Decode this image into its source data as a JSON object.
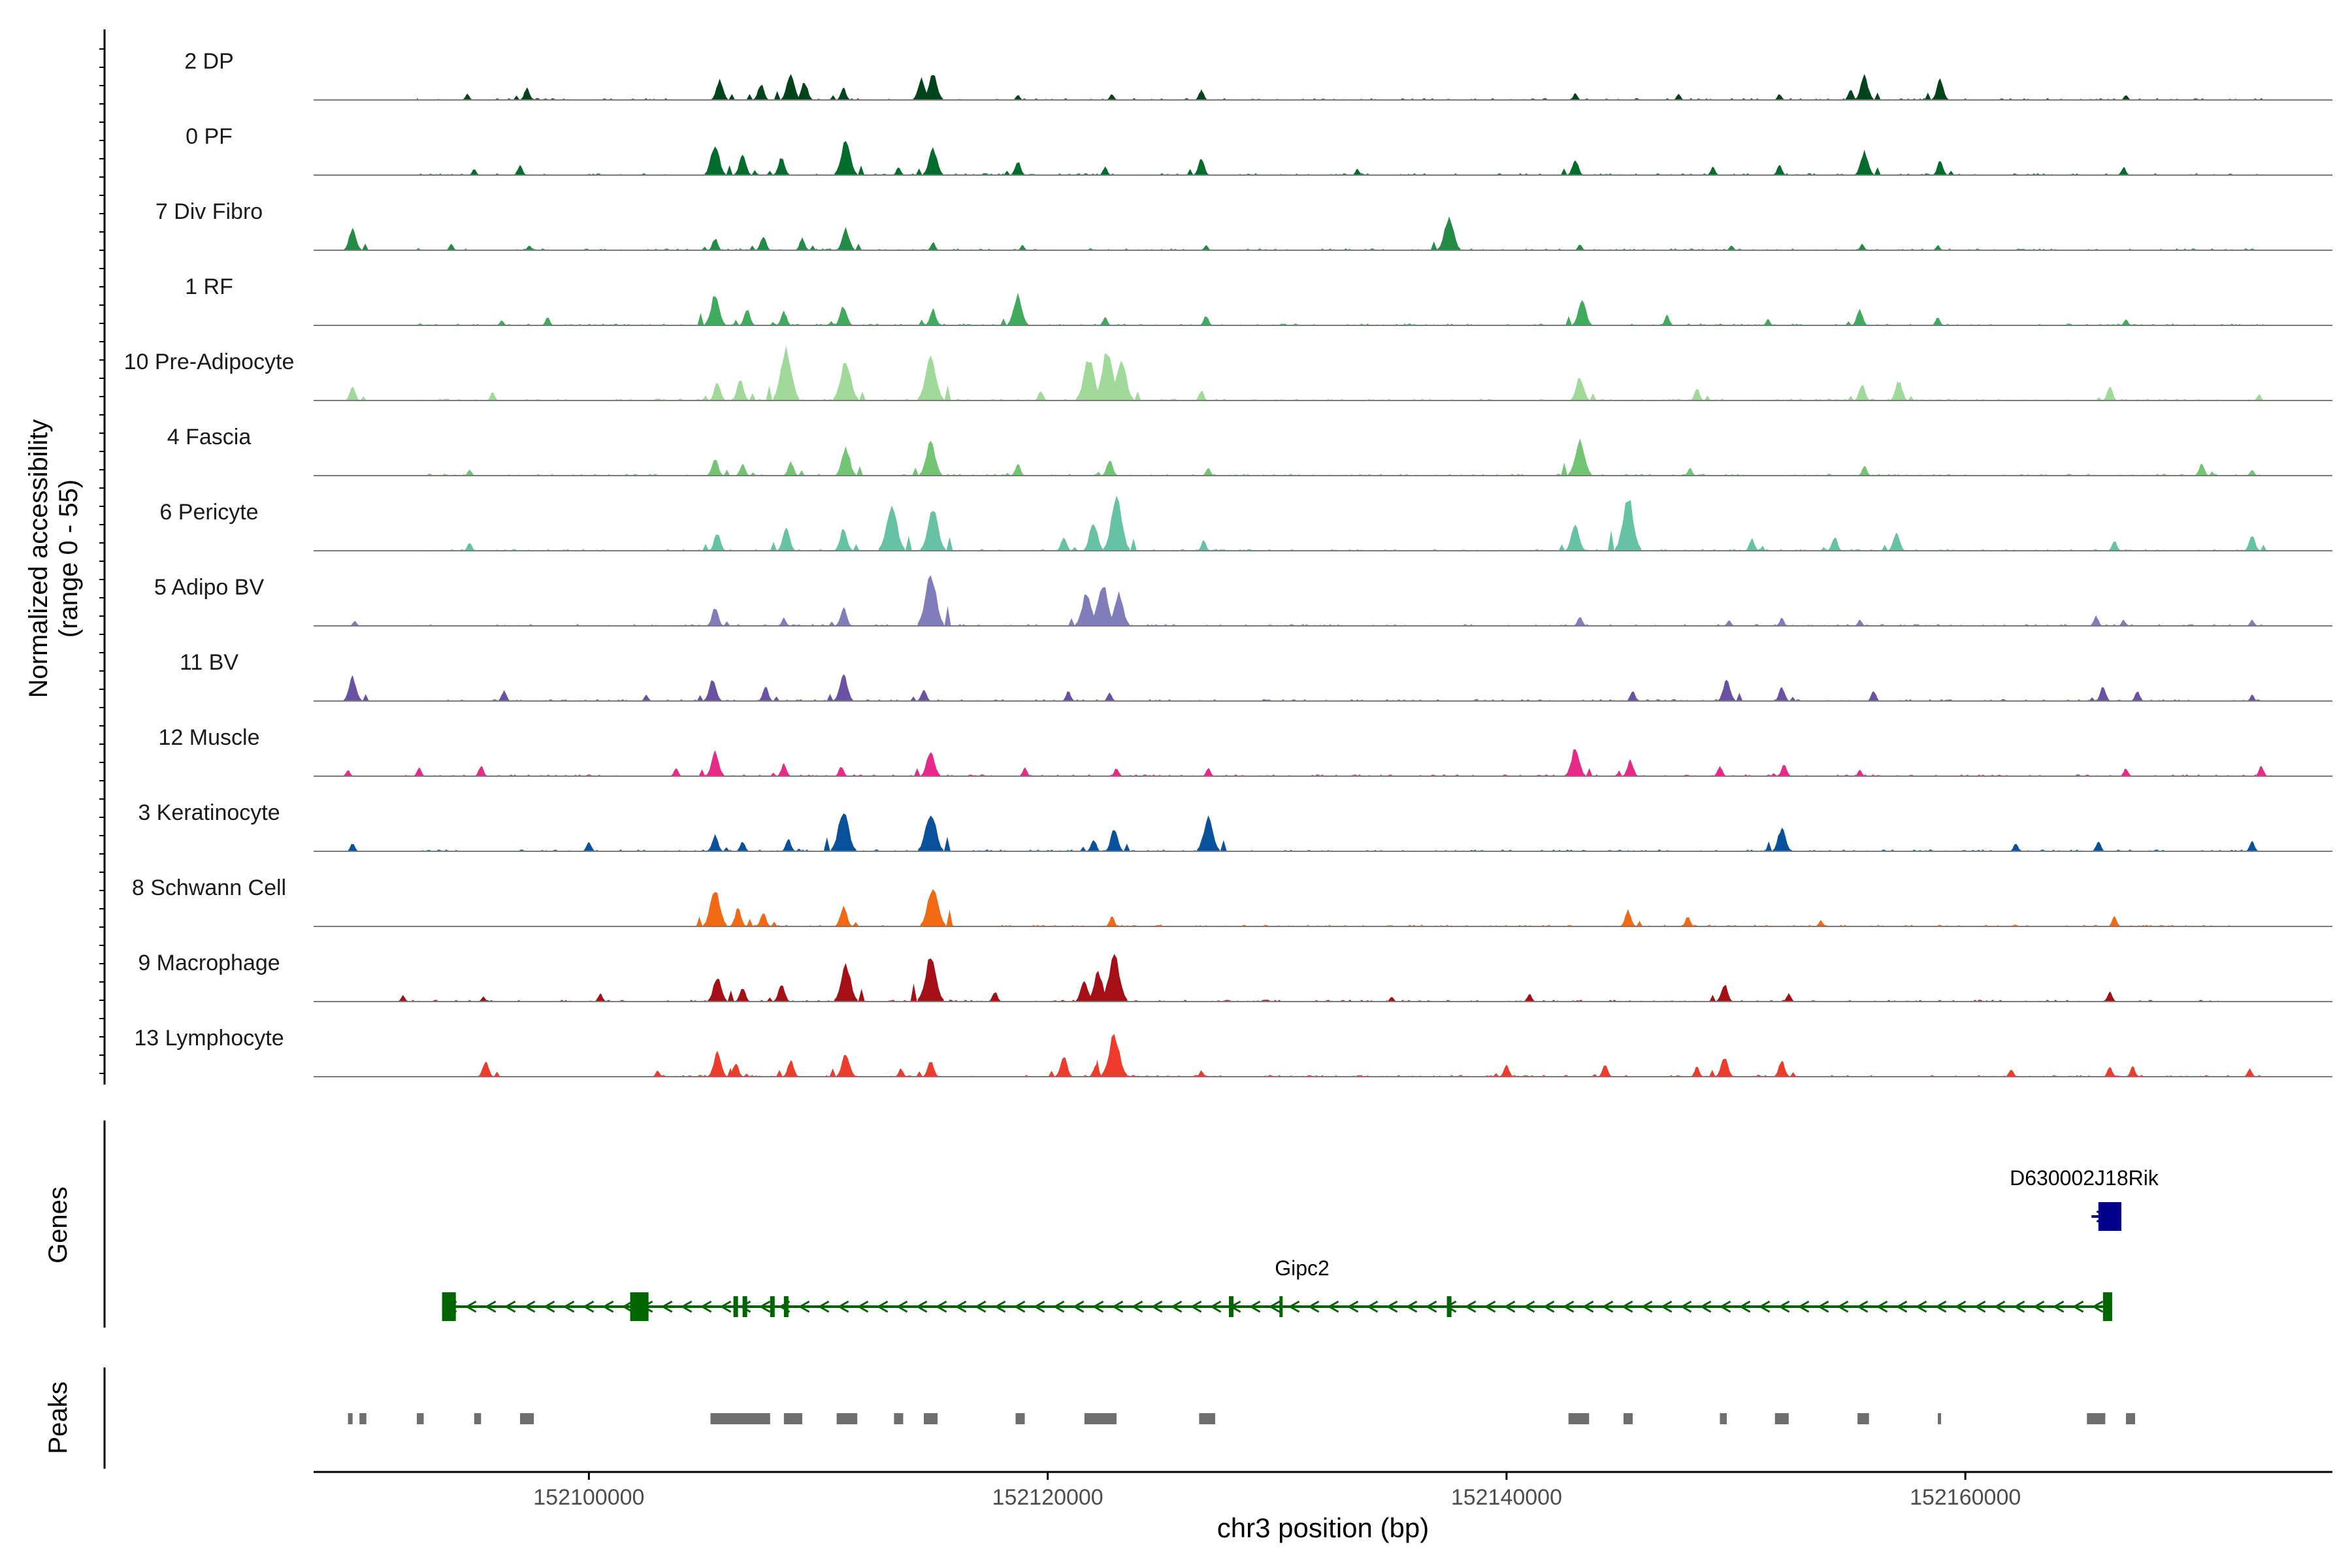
{
  "chart_data": {
    "type": "area",
    "title": "",
    "chromosome": "chr3",
    "xlabel": "chr3 position (bp)",
    "xlim": [
      152088000,
      152176000
    ],
    "xticks": [
      152100000,
      152120000,
      152140000,
      152160000
    ],
    "xtick_labels": [
      "152100000",
      "152120000",
      "152140000",
      "152160000"
    ],
    "ylabel_line1": "Normalized accessibility",
    "ylabel_line2": "(range 0 - 55)",
    "ylim": [
      0,
      55
    ],
    "tracks": [
      {
        "name": "2 DP",
        "color": "#00441b",
        "start": 152092500,
        "end": 152173000,
        "peaks": [
          [
            152094700,
            6
          ],
          [
            152097300,
            12
          ],
          [
            152105700,
            20
          ],
          [
            152107500,
            16
          ],
          [
            152108800,
            26
          ],
          [
            152109400,
            18
          ],
          [
            152111100,
            12
          ],
          [
            152114500,
            22
          ],
          [
            152115000,
            28
          ],
          [
            152118700,
            5
          ],
          [
            152122800,
            6
          ],
          [
            152126700,
            10
          ],
          [
            152143000,
            7
          ],
          [
            152147500,
            6
          ],
          [
            152151900,
            6
          ],
          [
            152155000,
            10
          ],
          [
            152155600,
            24
          ],
          [
            152158900,
            20
          ],
          [
            152167000,
            5
          ]
        ]
      },
      {
        "name": "0 PF",
        "color": "#006d2c",
        "start": 152092500,
        "end": 152173000,
        "peaks": [
          [
            152095000,
            6
          ],
          [
            152097000,
            10
          ],
          [
            152105500,
            30
          ],
          [
            152106700,
            20
          ],
          [
            152108400,
            18
          ],
          [
            152111200,
            34
          ],
          [
            152113500,
            8
          ],
          [
            152115000,
            28
          ],
          [
            152118700,
            14
          ],
          [
            152122500,
            8
          ],
          [
            152126700,
            16
          ],
          [
            152133500,
            6
          ],
          [
            152143000,
            16
          ],
          [
            152149000,
            8
          ],
          [
            152151900,
            10
          ],
          [
            152155600,
            24
          ],
          [
            152158900,
            14
          ],
          [
            152166900,
            8
          ]
        ]
      },
      {
        "name": "7 Div Fibro",
        "color": "#238b45",
        "start": 152092500,
        "end": 152173000,
        "peaks": [
          [
            152089700,
            22
          ],
          [
            152094000,
            6
          ],
          [
            152097400,
            5
          ],
          [
            152105500,
            12
          ],
          [
            152107600,
            14
          ],
          [
            152109300,
            12
          ],
          [
            152111200,
            22
          ],
          [
            152115000,
            8
          ],
          [
            152118900,
            5
          ],
          [
            152126900,
            5
          ],
          [
            152137500,
            34
          ],
          [
            152143200,
            6
          ],
          [
            152149800,
            5
          ],
          [
            152155500,
            6
          ],
          [
            152158800,
            5
          ]
        ]
      },
      {
        "name": "1 RF",
        "color": "#41ab5d",
        "start": 152092500,
        "end": 152173000,
        "peaks": [
          [
            152096200,
            5
          ],
          [
            152098200,
            8
          ],
          [
            152105500,
            30
          ],
          [
            152106900,
            16
          ],
          [
            152108500,
            14
          ],
          [
            152111100,
            20
          ],
          [
            152115000,
            16
          ],
          [
            152118700,
            30
          ],
          [
            152122500,
            8
          ],
          [
            152126900,
            10
          ],
          [
            152143300,
            26
          ],
          [
            152147000,
            10
          ],
          [
            152151400,
            6
          ],
          [
            152155400,
            16
          ],
          [
            152158800,
            8
          ],
          [
            152167000,
            6
          ]
        ]
      },
      {
        "name": "10 Pre-Adipocyte",
        "color": "#a1d99b",
        "start": 152092500,
        "end": 152173000,
        "peaks": [
          [
            152089700,
            14
          ],
          [
            152095800,
            8
          ],
          [
            152105600,
            18
          ],
          [
            152106600,
            20
          ],
          [
            152108600,
            52
          ],
          [
            152111200,
            40
          ],
          [
            152114900,
            44
          ],
          [
            152119700,
            10
          ],
          [
            152121800,
            42
          ],
          [
            152122600,
            52
          ],
          [
            152123200,
            40
          ],
          [
            152126700,
            10
          ],
          [
            152143200,
            24
          ],
          [
            152148300,
            12
          ],
          [
            152155500,
            16
          ],
          [
            152157100,
            20
          ],
          [
            152166300,
            14
          ],
          [
            152172800,
            6
          ]
        ]
      },
      {
        "name": "4 Fascia",
        "color": "#74c476",
        "start": 152092500,
        "end": 152173000,
        "peaks": [
          [
            152094800,
            6
          ],
          [
            152105500,
            18
          ],
          [
            152106700,
            12
          ],
          [
            152108800,
            14
          ],
          [
            152111200,
            28
          ],
          [
            152114900,
            34
          ],
          [
            152118700,
            12
          ],
          [
            152122700,
            16
          ],
          [
            152127000,
            8
          ],
          [
            152143200,
            36
          ],
          [
            152148000,
            8
          ],
          [
            152155600,
            10
          ],
          [
            152170300,
            12
          ],
          [
            152172500,
            6
          ]
        ]
      },
      {
        "name": "6 Pericyte",
        "color": "#66c2a4",
        "start": 152092500,
        "end": 152173000,
        "peaks": [
          [
            152094800,
            8
          ],
          [
            152105600,
            18
          ],
          [
            152108600,
            22
          ],
          [
            152111100,
            22
          ],
          [
            152113200,
            46
          ],
          [
            152115000,
            40
          ],
          [
            152120700,
            14
          ],
          [
            152122000,
            28
          ],
          [
            152123000,
            52
          ],
          [
            152126800,
            10
          ],
          [
            152143000,
            26
          ],
          [
            152145300,
            54
          ],
          [
            152150700,
            12
          ],
          [
            152154300,
            14
          ],
          [
            152157000,
            18
          ],
          [
            152166500,
            10
          ],
          [
            152172500,
            16
          ]
        ]
      },
      {
        "name": "5 Adipo BV",
        "color": "#807dba",
        "start": 152092500,
        "end": 152173000,
        "peaks": [
          [
            152089800,
            5
          ],
          [
            152105500,
            18
          ],
          [
            152108500,
            8
          ],
          [
            152111100,
            18
          ],
          [
            152114900,
            54
          ],
          [
            152121700,
            34
          ],
          [
            152122400,
            42
          ],
          [
            152123100,
            32
          ],
          [
            152143200,
            10
          ],
          [
            152149700,
            6
          ],
          [
            152152000,
            8
          ],
          [
            152155400,
            6
          ],
          [
            152165700,
            10
          ],
          [
            152166900,
            6
          ],
          [
            152172500,
            6
          ]
        ]
      },
      {
        "name": "11 BV",
        "color": "#6a51a3",
        "start": 152092500,
        "end": 152173000,
        "peaks": [
          [
            152089700,
            24
          ],
          [
            152096300,
            10
          ],
          [
            152102500,
            6
          ],
          [
            152105400,
            22
          ],
          [
            152107700,
            14
          ],
          [
            152111100,
            26
          ],
          [
            152114600,
            12
          ],
          [
            152120900,
            10
          ],
          [
            152122700,
            8
          ],
          [
            152145500,
            10
          ],
          [
            152149600,
            22
          ],
          [
            152152000,
            14
          ],
          [
            152156000,
            10
          ],
          [
            152166000,
            14
          ],
          [
            152167500,
            10
          ],
          [
            152172500,
            6
          ]
        ]
      },
      {
        "name": "12 Muscle",
        "color": "#e7298a",
        "start": 152092000,
        "end": 152173500,
        "peaks": [
          [
            152089500,
            6
          ],
          [
            152092600,
            8
          ],
          [
            152095300,
            10
          ],
          [
            152103800,
            8
          ],
          [
            152105500,
            24
          ],
          [
            152108500,
            12
          ],
          [
            152111000,
            10
          ],
          [
            152114900,
            26
          ],
          [
            152119000,
            8
          ],
          [
            152123000,
            8
          ],
          [
            152127000,
            8
          ],
          [
            152143000,
            28
          ],
          [
            152145400,
            16
          ],
          [
            152149300,
            10
          ],
          [
            152152100,
            12
          ],
          [
            152155400,
            6
          ],
          [
            152167000,
            8
          ],
          [
            152172900,
            10
          ]
        ]
      },
      {
        "name": "3 Keratinocyte",
        "color": "#08519c",
        "start": 152092500,
        "end": 152173000,
        "peaks": [
          [
            152089700,
            8
          ],
          [
            152100000,
            10
          ],
          [
            152105500,
            16
          ],
          [
            152106700,
            10
          ],
          [
            152108700,
            12
          ],
          [
            152111100,
            40
          ],
          [
            152114900,
            40
          ],
          [
            152122000,
            12
          ],
          [
            152122900,
            22
          ],
          [
            152127000,
            34
          ],
          [
            152152000,
            24
          ],
          [
            152162200,
            8
          ],
          [
            152165800,
            10
          ],
          [
            152172500,
            10
          ]
        ]
      },
      {
        "name": "8 Schwann Cell",
        "color": "#f16913",
        "start": 152104000,
        "end": 152172000,
        "peaks": [
          [
            152105500,
            36
          ],
          [
            152106500,
            18
          ],
          [
            152107600,
            14
          ],
          [
            152111100,
            20
          ],
          [
            152115000,
            40
          ],
          [
            152122800,
            10
          ],
          [
            152145300,
            16
          ],
          [
            152147900,
            10
          ],
          [
            152153700,
            6
          ],
          [
            152166500,
            10
          ]
        ]
      },
      {
        "name": "9 Macrophage",
        "color": "#a50f15",
        "start": 152092000,
        "end": 152171500,
        "peaks": [
          [
            152091900,
            6
          ],
          [
            152095400,
            5
          ],
          [
            152100500,
            8
          ],
          [
            152105600,
            26
          ],
          [
            152106700,
            14
          ],
          [
            152108400,
            18
          ],
          [
            152111200,
            36
          ],
          [
            152114900,
            44
          ],
          [
            152117700,
            10
          ],
          [
            152121600,
            22
          ],
          [
            152122200,
            30
          ],
          [
            152122900,
            48
          ],
          [
            152135000,
            5
          ],
          [
            152141000,
            8
          ],
          [
            152149500,
            18
          ],
          [
            152152300,
            8
          ],
          [
            152166300,
            10
          ]
        ]
      },
      {
        "name": "13 Lymphocyte",
        "color": "#ef3b2c",
        "start": 152103000,
        "end": 152173000,
        "peaks": [
          [
            152095500,
            16
          ],
          [
            152103000,
            6
          ],
          [
            152105600,
            24
          ],
          [
            152106400,
            14
          ],
          [
            152108800,
            16
          ],
          [
            152111200,
            24
          ],
          [
            152113600,
            8
          ],
          [
            152114900,
            16
          ],
          [
            152120700,
            20
          ],
          [
            152122100,
            12
          ],
          [
            152122900,
            42
          ],
          [
            152126700,
            6
          ],
          [
            152140000,
            12
          ],
          [
            152144300,
            12
          ],
          [
            152148300,
            10
          ],
          [
            152149500,
            20
          ],
          [
            152152000,
            16
          ],
          [
            152162000,
            8
          ],
          [
            152166300,
            10
          ],
          [
            152167300,
            10
          ],
          [
            152172400,
            8
          ]
        ]
      }
    ],
    "genes_label": "Genes",
    "genes": [
      {
        "name": "Gipc2",
        "color": "#006400",
        "strand": "-",
        "start": 152093600,
        "end": 152166300,
        "exons": [
          [
            152093600,
            152094200
          ],
          [
            152101800,
            152102600
          ],
          [
            152106300,
            152106500
          ],
          [
            152106700,
            152106900
          ],
          [
            152107900,
            152108100
          ],
          [
            152108500,
            152108700
          ],
          [
            152127900,
            152128100
          ],
          [
            152130100,
            152130200
          ],
          [
            152137400,
            152137600
          ],
          [
            152166000,
            152166400
          ]
        ]
      },
      {
        "name": "D630002J18Rik",
        "color": "#00008b",
        "strand": "+",
        "start": 152165500,
        "end": 152166800,
        "exons": [
          [
            152165800,
            152166800
          ]
        ]
      }
    ],
    "peaks_label": "Peaks",
    "peak_regions": [
      [
        152089500,
        152089700
      ],
      [
        152090000,
        152090300
      ],
      [
        152092500,
        152092800
      ],
      [
        152095000,
        152095300
      ],
      [
        152097000,
        152097600
      ],
      [
        152105300,
        152107900
      ],
      [
        152108500,
        152109300
      ],
      [
        152110800,
        152111700
      ],
      [
        152113300,
        152113700
      ],
      [
        152114600,
        152115200
      ],
      [
        152118600,
        152119000
      ],
      [
        152121600,
        152123000
      ],
      [
        152126600,
        152127300
      ],
      [
        152142700,
        152143600
      ],
      [
        152145100,
        152145500
      ],
      [
        152149300,
        152149600
      ],
      [
        152151700,
        152152300
      ],
      [
        152155300,
        152155800
      ],
      [
        152158800,
        152158900
      ],
      [
        152165300,
        152166100
      ],
      [
        152167000,
        152167400
      ]
    ]
  }
}
